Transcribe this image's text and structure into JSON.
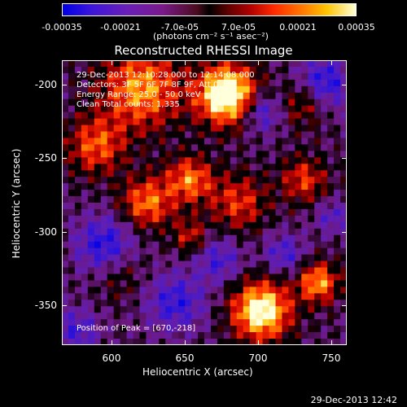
{
  "colorbar": {
    "ticks": [
      "-0.00035",
      "-0.00021",
      "-7.0e-05",
      "7.0e-05",
      "0.00021",
      "0.00035"
    ],
    "units": "(photons cm⁻² s⁻¹ asec⁻²)"
  },
  "title": "Reconstructed RHESSI Image",
  "overlay": {
    "time_range": "29-Dec-2013 12:10:28.000 to 12:14:08.000",
    "detectors": "Detectors: 3F 5F 6F 7F 8F 9F, Att 0",
    "energy_range": "Energy Range: 25.0 - 50.0 keV",
    "clean": "Clean     Total counts: 1,335",
    "peak_position": "Position of Peak = [670,-218]"
  },
  "axes": {
    "xlabel": "Heliocentric X (arcsec)",
    "ylabel": "Heliocentric Y (arcsec)",
    "xticks": [
      "600",
      "650",
      "700",
      "750"
    ],
    "yticks": [
      "-200",
      "-250",
      "-300",
      "-350"
    ]
  },
  "timestamp": "29-Dec-2013 12:42"
}
